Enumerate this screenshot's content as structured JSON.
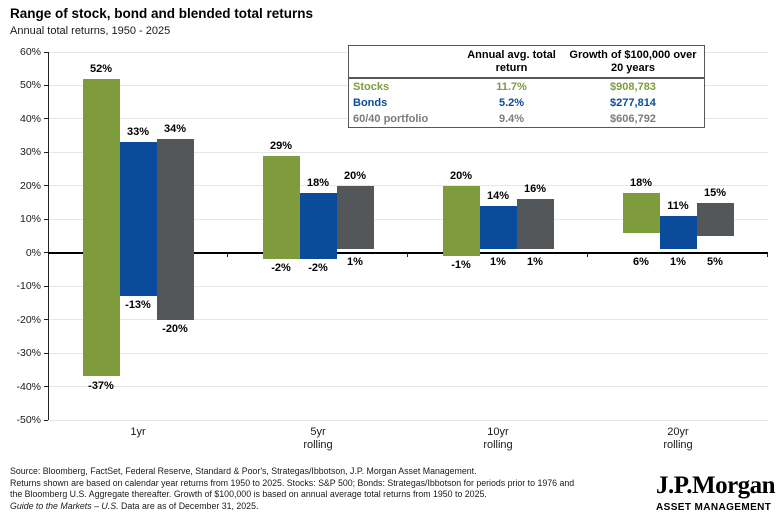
{
  "title": "Range of stock, bond and blended total returns",
  "subtitle": "Annual total returns, 1950 - 2025",
  "chart_data": {
    "type": "bar",
    "subtype": "floating-range-columns",
    "title": "Range of stock, bond and blended total returns",
    "subtitle": "Annual total returns, 1950 - 2025",
    "categories": [
      [
        "1yr"
      ],
      [
        "5yr",
        "rolling"
      ],
      [
        "10yr",
        "rolling"
      ],
      [
        "20yr",
        "rolling"
      ]
    ],
    "series": [
      {
        "name": "Stocks",
        "color": "#7F9C3D",
        "ranges": [
          [
            -37,
            52
          ],
          [
            -2,
            29
          ],
          [
            -1,
            20
          ],
          [
            6,
            18
          ]
        ]
      },
      {
        "name": "Bonds",
        "color": "#0A4B9B",
        "ranges": [
          [
            -13,
            33
          ],
          [
            -2,
            18
          ],
          [
            1,
            14
          ],
          [
            1,
            11
          ]
        ]
      },
      {
        "name": "60/40 portfolio",
        "color": "#53575A",
        "ranges": [
          [
            -20,
            34
          ],
          [
            1,
            20
          ],
          [
            1,
            16
          ],
          [
            5,
            15
          ]
        ]
      }
    ],
    "ylim": [
      -50,
      60
    ],
    "ytick_step": 10,
    "ytick_suffix": "%",
    "grid": "horizontal",
    "value_labels": "min-max-percent",
    "legend_position": "table-top-right"
  },
  "table": {
    "col1_header": "Annual avg. total return",
    "col2_header": "Growth of $100,000 over 20 years",
    "rows": [
      {
        "label": "Stocks",
        "avg": "11.7%",
        "growth": "$908,783",
        "color": "#7F9C3D"
      },
      {
        "label": "Bonds",
        "avg": "5.2%",
        "growth": "$277,814",
        "color": "#0A4B9B"
      },
      {
        "label": "60/40 portfolio",
        "avg": "9.4%",
        "growth": "$606,792",
        "color": "#797B7D"
      }
    ]
  },
  "footer": {
    "line1": "Source: Bloomberg, FactSet, Federal Reserve, Standard & Poor's, Strategas/Ibbotson, J.P. Morgan Asset Management.",
    "line2": "Returns shown are based on calendar year returns from 1950 to 2025. Stocks: S&P 500; Bonds: Strategas/Ibbotson for periods prior to 1976 and",
    "line3": "the Bloomberg U.S. Aggregate thereafter. Growth of $100,000 is based on annual average total returns from 1950 to 2025.",
    "line4_italic": "Guide to the Markets – U.S.",
    "line4_rest": " Data are as of December 31, 2025."
  },
  "logo": {
    "brand": "J.P.Morgan",
    "division": "ASSET MANAGEMENT"
  }
}
